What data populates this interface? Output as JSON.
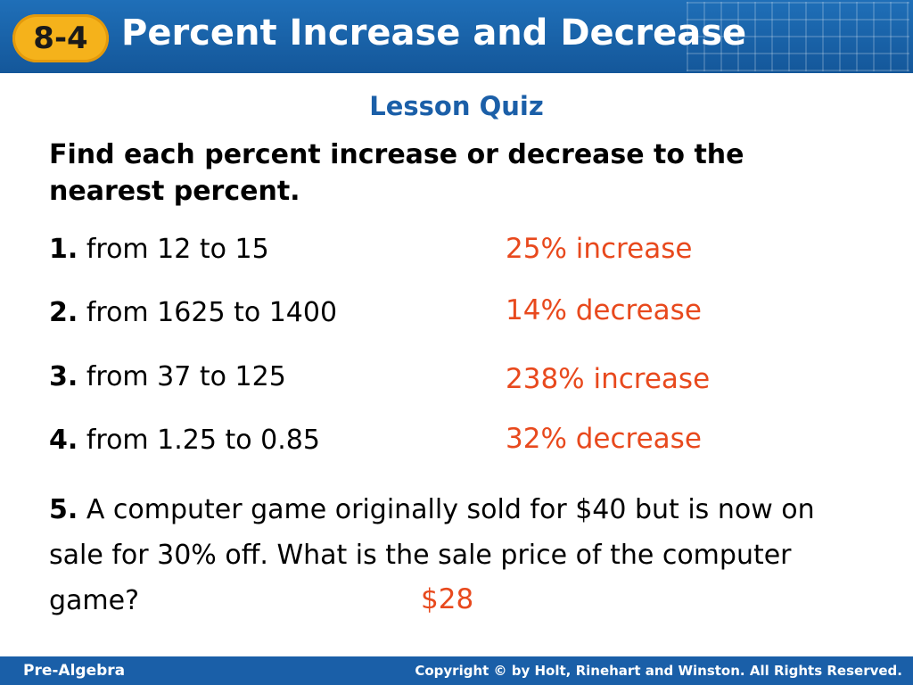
{
  "header": {
    "lesson_number": "8-4",
    "title": "Percent Increase and Decrease"
  },
  "section_title": "Lesson Quiz",
  "instructions": "Find each percent increase or decrease to the nearest percent.",
  "questions": [
    {
      "number": "1.",
      "text": "from 12 to 15",
      "answer": "25% increase"
    },
    {
      "number": "2.",
      "text": "from 1625 to 1400",
      "answer": "14% decrease"
    },
    {
      "number": "3.",
      "text": "from 37 to 125",
      "answer": "238% increase"
    },
    {
      "number": "4.",
      "text": "from 1.25 to 0.85",
      "answer": "32% decrease"
    }
  ],
  "question5": {
    "number": "5.",
    "text": "A computer game originally sold for $40 but is now on sale for 30% off. What is the sale price of the computer game?",
    "answer": "$28"
  },
  "footer": {
    "course": "Pre-Algebra",
    "copyright": "Copyright © by Holt, Rinehart and Winston. All Rights Reserved."
  },
  "colors": {
    "header_blue": "#1f6fb8",
    "badge_orange": "#f5b21b",
    "answer_red": "#e8491d",
    "section_blue": "#1b5fa8"
  }
}
